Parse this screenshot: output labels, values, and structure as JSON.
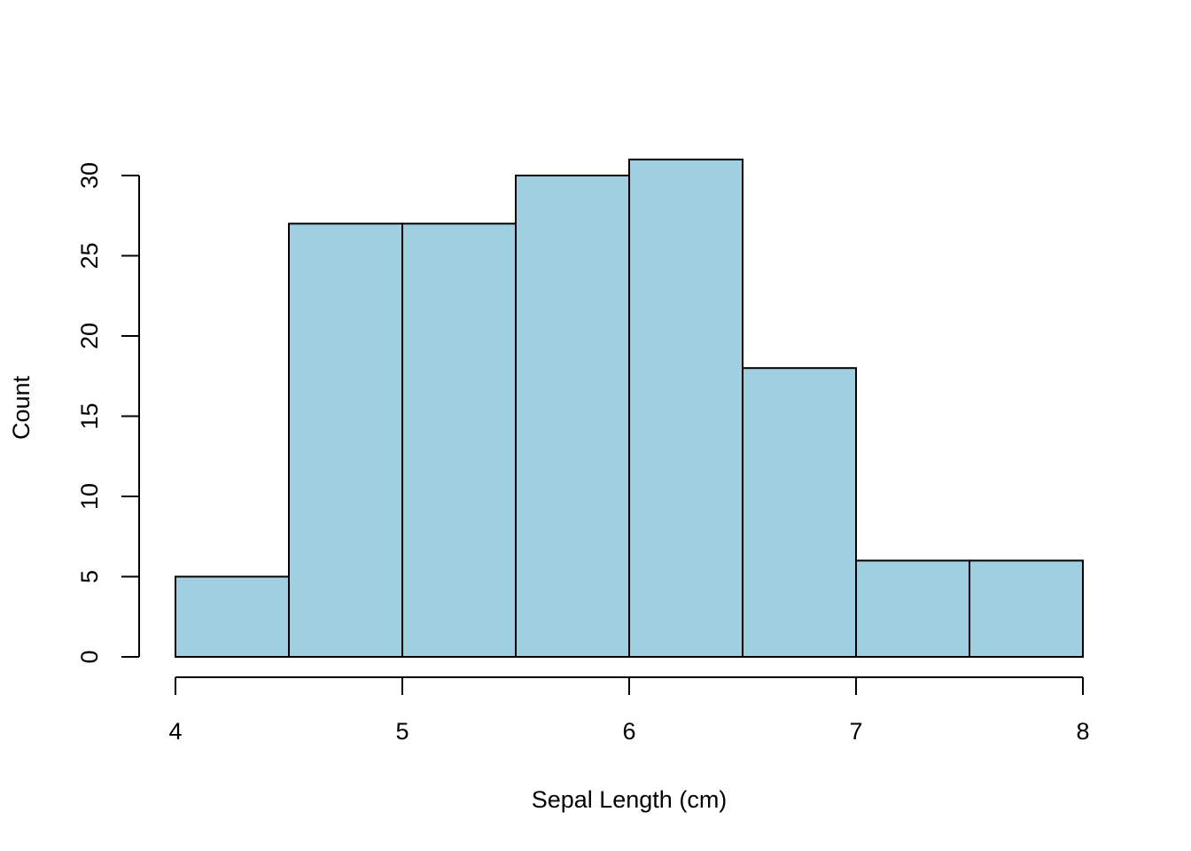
{
  "chart_data": {
    "type": "bar",
    "subtype": "histogram",
    "title": "",
    "xlabel": "Sepal Length (cm)",
    "ylabel": "Count",
    "bin_edges": [
      4,
      4.5,
      5,
      5.5,
      6,
      6.5,
      7,
      7.5,
      8
    ],
    "values": [
      5,
      27,
      27,
      30,
      31,
      18,
      6,
      6
    ],
    "xlim": [
      4,
      8
    ],
    "ylim": [
      0,
      30
    ],
    "x_ticks": [
      "4",
      "5",
      "6",
      "7",
      "8"
    ],
    "y_ticks": [
      "0",
      "5",
      "10",
      "15",
      "20",
      "25",
      "30"
    ],
    "grid": false,
    "colors": {
      "fill": "#9fcfe0",
      "stroke": "#000000"
    }
  }
}
